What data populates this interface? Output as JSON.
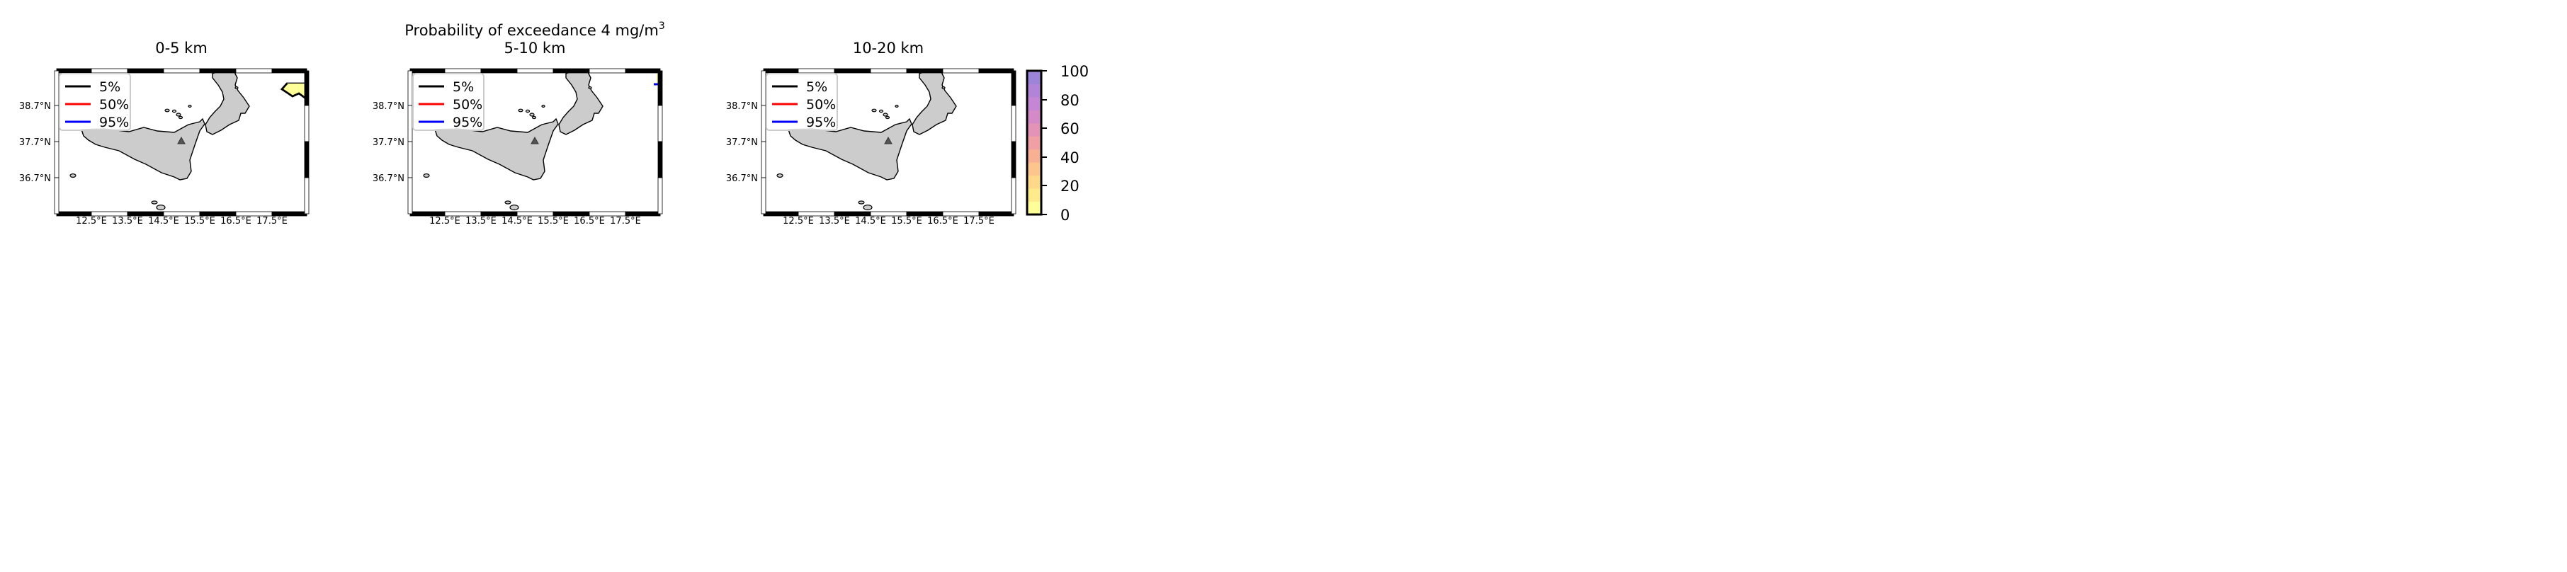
{
  "figure": {
    "suptitle_main": "Probability of exceedance 4 mg/m",
    "suptitle_sup": "3"
  },
  "chart_data": [
    {
      "type": "contour-map",
      "title": "0-5 km",
      "lon_ticks": [
        "12.5°E",
        "13.5°E",
        "14.5°E",
        "15.5°E",
        "16.5°E",
        "17.5°E"
      ],
      "lat_ticks": [
        "38.7°N",
        "37.7°N",
        "36.7°N"
      ],
      "legend": [
        {
          "label": "5%",
          "color": "#000000"
        },
        {
          "label": "50%",
          "color": "#ff0000"
        },
        {
          "label": "95%",
          "color": "#0000ff"
        }
      ],
      "legend_placement": "top-left",
      "volcano_marker": "triangle",
      "contours": [
        {
          "level": "5%",
          "present": true,
          "location": "top-right"
        }
      ]
    },
    {
      "type": "contour-map",
      "title": "5-10 km",
      "lon_ticks": [
        "12.5°E",
        "13.5°E",
        "14.5°E",
        "15.5°E",
        "16.5°E",
        "17.5°E"
      ],
      "lat_ticks": [
        "38.7°N",
        "37.7°N",
        "36.7°N"
      ],
      "legend": [
        {
          "label": "5%",
          "color": "#000000"
        },
        {
          "label": "50%",
          "color": "#ff0000"
        },
        {
          "label": "95%",
          "color": "#0000ff"
        }
      ],
      "legend_placement": "top-left",
      "volcano_marker": "triangle",
      "contours": [
        {
          "level": "95%",
          "present": true,
          "location": "top-right edge"
        }
      ]
    },
    {
      "type": "contour-map",
      "title": "10-20 km",
      "lon_ticks": [
        "12.5°E",
        "13.5°E",
        "14.5°E",
        "15.5°E",
        "16.5°E",
        "17.5°E"
      ],
      "lat_ticks": [
        "38.7°N",
        "37.7°N",
        "36.7°N"
      ],
      "legend": [
        {
          "label": "5%",
          "color": "#000000"
        },
        {
          "label": "50%",
          "color": "#ff0000"
        },
        {
          "label": "95%",
          "color": "#0000ff"
        }
      ],
      "legend_placement": "top-left",
      "volcano_marker": "triangle",
      "contours": []
    }
  ],
  "colorbar": {
    "ticks": [
      "0",
      "20",
      "40",
      "60",
      "80",
      "100"
    ],
    "colors": [
      "#ffff99",
      "#ffeb8c",
      "#ffd88a",
      "#fdc48d",
      "#f8b094",
      "#f0a0a4",
      "#e394b6",
      "#d58ac8",
      "#c586d5",
      "#b184d8",
      "#9c84d8"
    ]
  },
  "style": {
    "land_color": "#cccccc",
    "coast_color": "#000000",
    "plume_fill": "#ffff99"
  }
}
